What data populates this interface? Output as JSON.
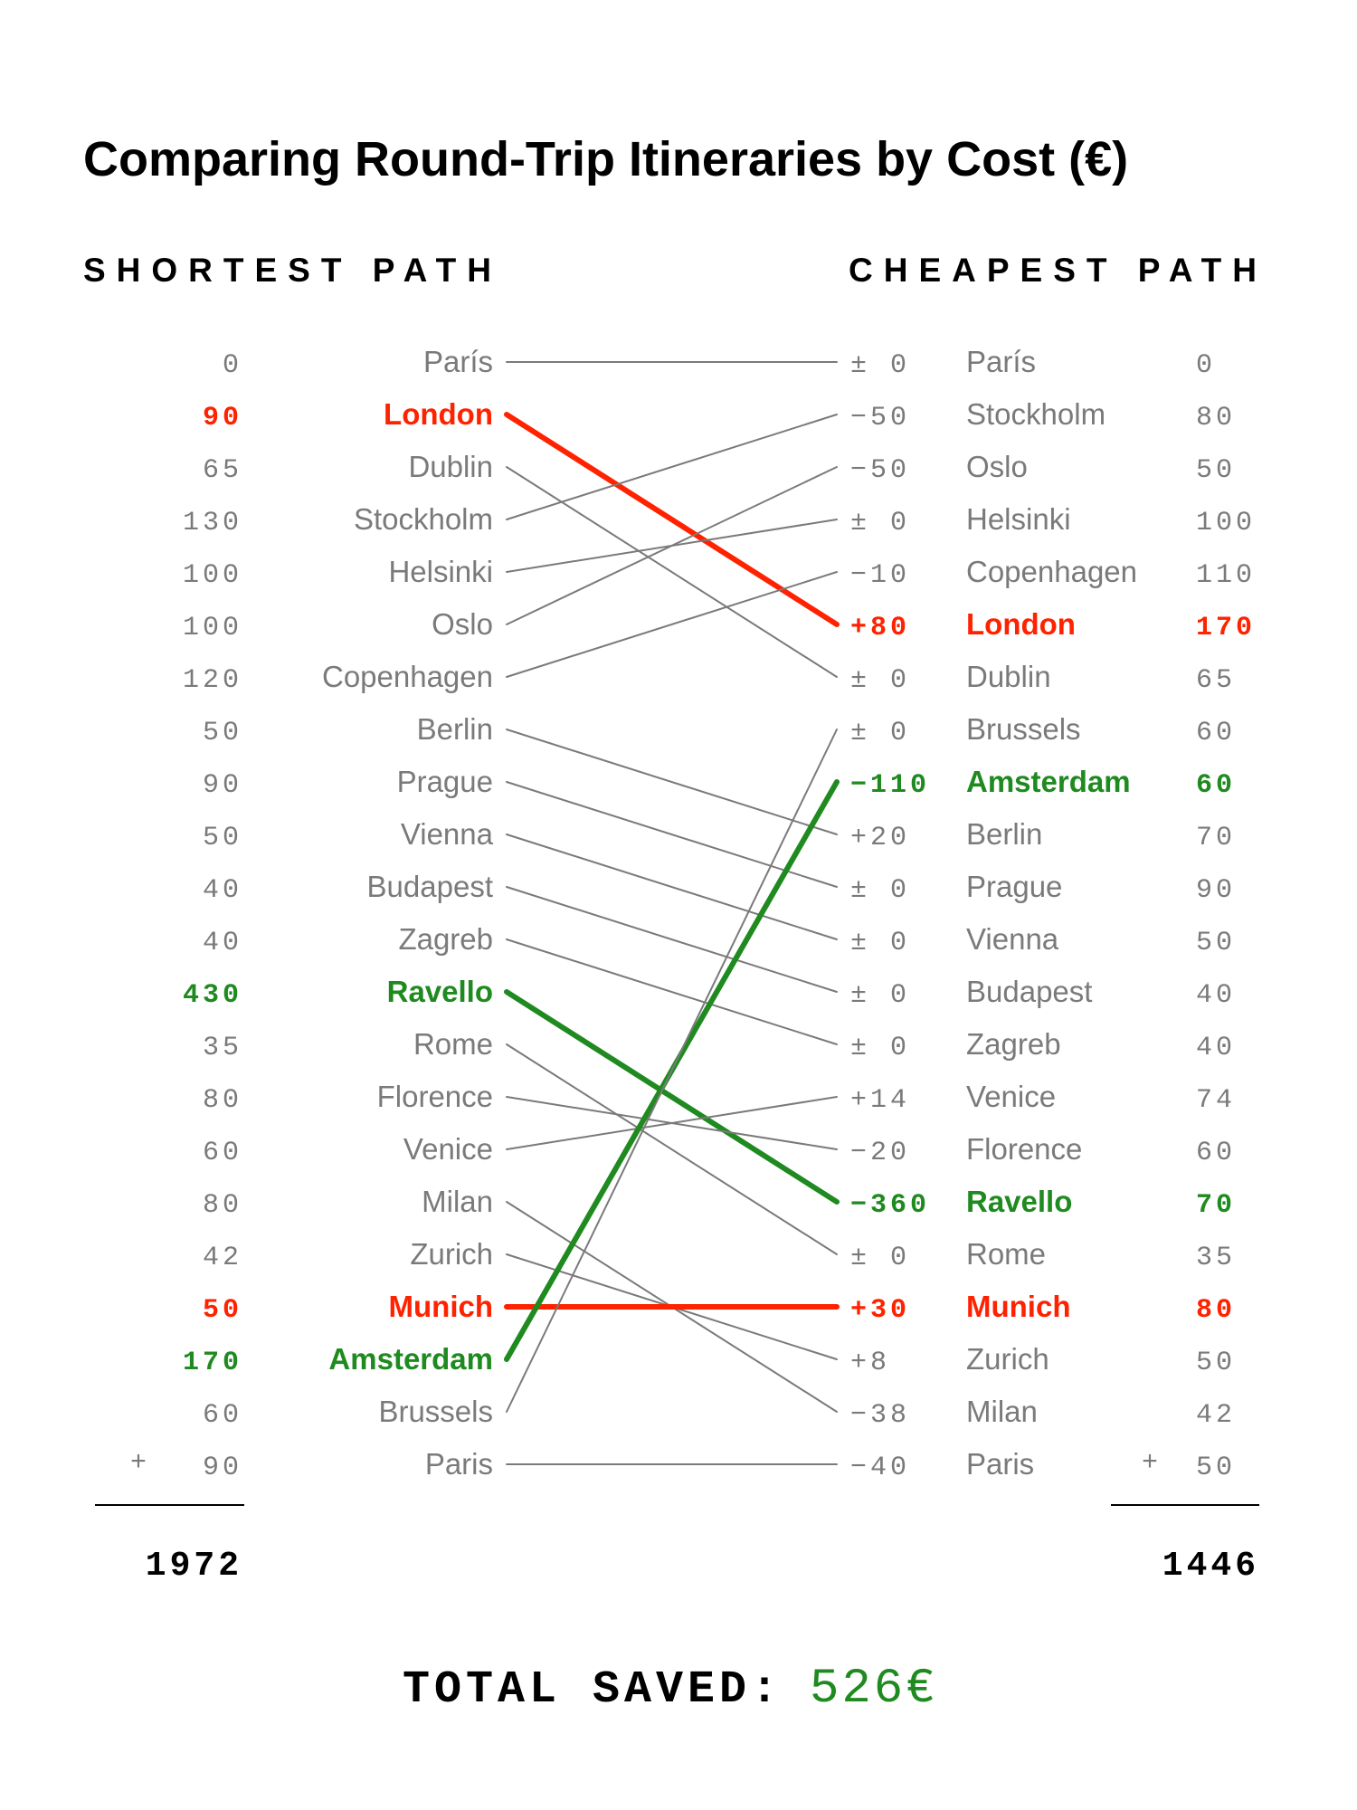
{
  "title": "Comparing Round-Trip Itineraries by Cost (€)",
  "left_heading": "SHORTEST PATH",
  "right_heading": "CHEAPEST PATH",
  "colors": {
    "neutral": "#7a7a7a",
    "more_expensive": "#ff2200",
    "cheaper": "#1f8a1f",
    "text": "#000000"
  },
  "chart_data": {
    "type": "slope",
    "left": {
      "cities": [
        "París",
        "London",
        "Dublin",
        "Stockholm",
        "Helsinki",
        "Oslo",
        "Copenhagen",
        "Berlin",
        "Prague",
        "Vienna",
        "Budapest",
        "Zagreb",
        "Ravello",
        "Rome",
        "Florence",
        "Venice",
        "Milan",
        "Zurich",
        "Munich",
        "Amsterdam",
        "Brussels",
        "Paris"
      ],
      "costs": [
        0,
        90,
        65,
        130,
        100,
        100,
        120,
        50,
        90,
        50,
        40,
        40,
        430,
        35,
        80,
        60,
        80,
        42,
        50,
        170,
        60,
        90
      ],
      "plus_sign": "+",
      "total": "1972"
    },
    "right": {
      "cities": [
        "París",
        "Stockholm",
        "Oslo",
        "Helsinki",
        "Copenhagen",
        "London",
        "Dublin",
        "Brussels",
        "Amsterdam",
        "Berlin",
        "Prague",
        "Vienna",
        "Budapest",
        "Zagreb",
        "Venice",
        "Florence",
        "Ravello",
        "Rome",
        "Munich",
        "Zurich",
        "Milan",
        "Paris"
      ],
      "costs": [
        0,
        80,
        50,
        100,
        110,
        170,
        65,
        60,
        60,
        70,
        90,
        50,
        40,
        40,
        74,
        60,
        70,
        35,
        80,
        50,
        42,
        50
      ],
      "deltas": [
        "± 0",
        "−50",
        "−50",
        "± 0",
        "−10",
        "+80",
        "± 0",
        "± 0",
        "−110",
        "+20",
        "± 0",
        "± 0",
        "± 0",
        "± 0",
        "+14",
        "−20",
        "−360",
        "± 0",
        "+30",
        "+8",
        "−38",
        "−40"
      ],
      "plus_sign": "+",
      "total": "1446"
    },
    "links": [
      {
        "from": 0,
        "to": 0,
        "highlight": "none"
      },
      {
        "from": 1,
        "to": 5,
        "highlight": "up"
      },
      {
        "from": 2,
        "to": 6,
        "highlight": "none"
      },
      {
        "from": 3,
        "to": 1,
        "highlight": "none"
      },
      {
        "from": 4,
        "to": 3,
        "highlight": "none"
      },
      {
        "from": 5,
        "to": 2,
        "highlight": "none"
      },
      {
        "from": 6,
        "to": 4,
        "highlight": "none"
      },
      {
        "from": 7,
        "to": 9,
        "highlight": "none"
      },
      {
        "from": 8,
        "to": 10,
        "highlight": "none"
      },
      {
        "from": 9,
        "to": 11,
        "highlight": "none"
      },
      {
        "from": 10,
        "to": 12,
        "highlight": "none"
      },
      {
        "from": 11,
        "to": 13,
        "highlight": "none"
      },
      {
        "from": 12,
        "to": 16,
        "highlight": "down"
      },
      {
        "from": 13,
        "to": 17,
        "highlight": "none"
      },
      {
        "from": 14,
        "to": 15,
        "highlight": "none"
      },
      {
        "from": 15,
        "to": 14,
        "highlight": "none"
      },
      {
        "from": 16,
        "to": 20,
        "highlight": "none"
      },
      {
        "from": 17,
        "to": 19,
        "highlight": "none"
      },
      {
        "from": 18,
        "to": 18,
        "highlight": "up"
      },
      {
        "from": 19,
        "to": 8,
        "highlight": "down"
      },
      {
        "from": 20,
        "to": 7,
        "highlight": "none"
      },
      {
        "from": 21,
        "to": 21,
        "highlight": "none"
      }
    ]
  },
  "footer": {
    "label": "TOTAL SAVED:",
    "value": "526€"
  }
}
